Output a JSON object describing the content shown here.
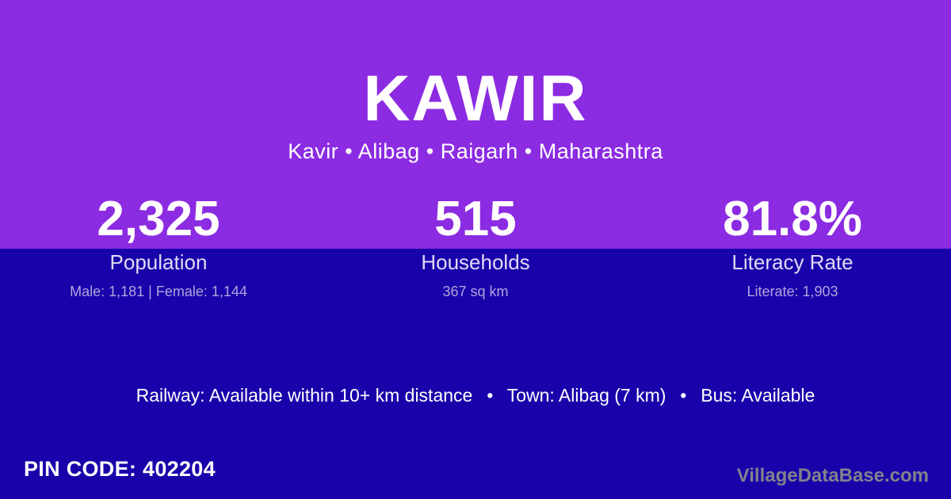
{
  "theme": {
    "top_band_bg": "#8B2BE2",
    "bottom_bg": "#1A02AB",
    "primary_text": "#FFFFFF",
    "label_text": "#E0DAF5",
    "detail_text": "#AFA5DB",
    "watermark_text": "#82828C"
  },
  "header": {
    "title": "KAWIR",
    "breadcrumb": "Kavir • Alibag • Raigarh • Maharashtra"
  },
  "stats": [
    {
      "value": "2,325",
      "label": "Population",
      "detail": "Male: 1,181 | Female: 1,144"
    },
    {
      "value": "515",
      "label": "Households",
      "detail": "367 sq km"
    },
    {
      "value": "81.8%",
      "label": "Literacy Rate",
      "detail": "Literate: 1,903"
    }
  ],
  "transport": {
    "line": "Railway: Available within 10+ km distance  •  Town: Alibag (7 km)  •  Bus: Available"
  },
  "footer": {
    "pin_code": "PIN CODE: 402204",
    "watermark": "VillageDataBase.com"
  }
}
